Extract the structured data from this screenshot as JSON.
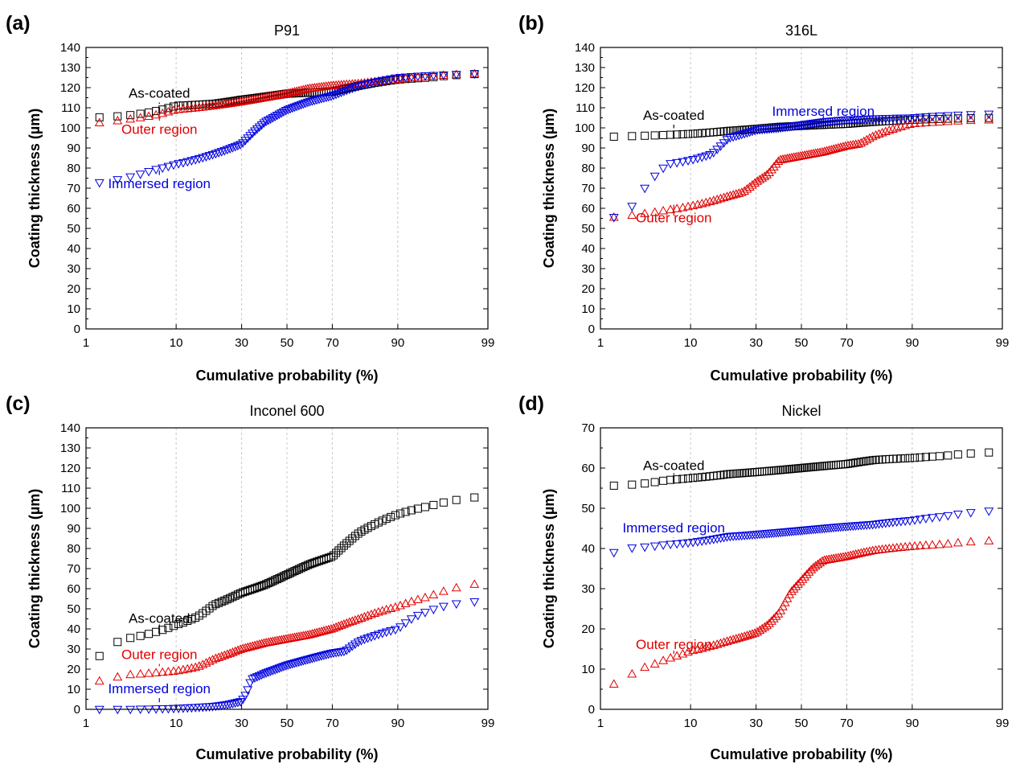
{
  "chart_data": [
    {
      "type": "scatter",
      "panel_label": "(a)",
      "title": "P91",
      "xlabel": "Cumulative probability (%)",
      "ylabel": "Coating thickness (µm)",
      "x_scale": "probability",
      "xlim": [
        1,
        99
      ],
      "xticks": [
        1,
        10,
        30,
        50,
        70,
        90,
        99
      ],
      "ylim": [
        0,
        140
      ],
      "yticks": [
        0,
        10,
        20,
        30,
        40,
        50,
        60,
        70,
        80,
        90,
        100,
        110,
        120,
        130,
        140
      ],
      "grid": "vertical dashed",
      "series": [
        {
          "name": "As-coated",
          "marker": "square",
          "color": "#000000",
          "curve": [
            [
              1,
              105
            ],
            [
              3,
              106
            ],
            [
              6,
              108
            ],
            [
              10,
              111
            ],
            [
              20,
              112
            ],
            [
              30,
              114
            ],
            [
              40,
              115.5
            ],
            [
              50,
              117
            ],
            [
              60,
              117.5
            ],
            [
              70,
              118
            ],
            [
              80,
              121
            ],
            [
              90,
              124
            ],
            [
              95,
              125
            ],
            [
              99,
              127
            ]
          ]
        },
        {
          "name": "Outer region",
          "marker": "triangle-up",
          "color": "#e00000",
          "curve": [
            [
              1,
              102
            ],
            [
              3,
              104
            ],
            [
              6,
              106
            ],
            [
              10,
              109
            ],
            [
              20,
              111
            ],
            [
              30,
              113
            ],
            [
              40,
              115
            ],
            [
              50,
              117
            ],
            [
              60,
              119.5
            ],
            [
              70,
              121
            ],
            [
              80,
              122
            ],
            [
              90,
              124
            ],
            [
              95,
              125.5
            ],
            [
              99,
              127
            ]
          ]
        },
        {
          "name": "Immersed region",
          "marker": "triangle-down",
          "color": "#0000e0",
          "curve": [
            [
              1,
              72
            ],
            [
              3,
              75
            ],
            [
              6,
              79
            ],
            [
              10,
              82
            ],
            [
              20,
              87
            ],
            [
              30,
              92
            ],
            [
              35,
              98
            ],
            [
              40,
              103
            ],
            [
              50,
              109
            ],
            [
              60,
              113
            ],
            [
              70,
              116
            ],
            [
              80,
              121
            ],
            [
              90,
              125
            ],
            [
              95,
              126
            ],
            [
              99,
              127
            ]
          ]
        }
      ],
      "annotations": [
        {
          "text": "As-coated",
          "color": "#000000",
          "x": 7,
          "y": 115
        },
        {
          "text": "Outer region",
          "color": "#e00000",
          "x": 7,
          "y": 97
        },
        {
          "text": "Immersed region",
          "color": "#0000e0",
          "x": 7,
          "y": 70
        }
      ]
    },
    {
      "type": "scatter",
      "panel_label": "(b)",
      "title": "316L",
      "xlabel": "Cumulative probability (%)",
      "ylabel": "Coating thickness (µm)",
      "x_scale": "probability",
      "xlim": [
        1,
        99
      ],
      "xticks": [
        1,
        10,
        30,
        50,
        70,
        90,
        99
      ],
      "ylim": [
        0,
        140
      ],
      "yticks": [
        0,
        10,
        20,
        30,
        40,
        50,
        60,
        70,
        80,
        90,
        100,
        110,
        120,
        130,
        140
      ],
      "grid": "vertical dashed",
      "series": [
        {
          "name": "As-coated",
          "marker": "square",
          "color": "#000000",
          "curve": [
            [
              1,
              95.5
            ],
            [
              3,
              96
            ],
            [
              6,
              96.5
            ],
            [
              10,
              97
            ],
            [
              20,
              98.5
            ],
            [
              30,
              99.5
            ],
            [
              40,
              100.5
            ],
            [
              50,
              101
            ],
            [
              60,
              101.5
            ],
            [
              70,
              102
            ],
            [
              80,
              103
            ],
            [
              90,
              104
            ],
            [
              95,
              104.5
            ],
            [
              99,
              105
            ]
          ]
        },
        {
          "name": "Outer region",
          "marker": "triangle-up",
          "color": "#e00000",
          "curve": [
            [
              1,
              55
            ],
            [
              3,
              57
            ],
            [
              6,
              59
            ],
            [
              10,
              61
            ],
            [
              20,
              66
            ],
            [
              25,
              68
            ],
            [
              30,
              73
            ],
            [
              35,
              77
            ],
            [
              40,
              84
            ],
            [
              50,
              86
            ],
            [
              60,
              88
            ],
            [
              70,
              91
            ],
            [
              75,
              92
            ],
            [
              80,
              96
            ],
            [
              90,
              102
            ],
            [
              95,
              103
            ],
            [
              99,
              104
            ]
          ]
        },
        {
          "name": "Immersed region",
          "marker": "triangle-down",
          "color": "#0000e0",
          "curve": [
            [
              1,
              55
            ],
            [
              2,
              56
            ],
            [
              3,
              66
            ],
            [
              4,
              74
            ],
            [
              6,
              82
            ],
            [
              10,
              84
            ],
            [
              15,
              87
            ],
            [
              20,
              95
            ],
            [
              30,
              99
            ],
            [
              40,
              100
            ],
            [
              50,
              101.5
            ],
            [
              60,
              103
            ],
            [
              70,
              104
            ],
            [
              80,
              104.5
            ],
            [
              90,
              105
            ],
            [
              95,
              106
            ],
            [
              99,
              107
            ]
          ]
        }
      ],
      "annotations": [
        {
          "text": "As-coated",
          "color": "#000000",
          "x": 7,
          "y": 104
        },
        {
          "text": "Immersed region",
          "color": "#0000e0",
          "x": 60,
          "y": 106
        },
        {
          "text": "Outer region",
          "color": "#e00000",
          "x": 7,
          "y": 53
        }
      ]
    },
    {
      "type": "scatter",
      "panel_label": "(c)",
      "title": "Inconel 600",
      "xlabel": "Cumulative probability (%)",
      "ylabel": "Coating thickness (µm)",
      "x_scale": "probability",
      "xlim": [
        1,
        99
      ],
      "xticks": [
        1,
        10,
        30,
        50,
        70,
        90,
        99
      ],
      "ylim": [
        0,
        140
      ],
      "yticks": [
        0,
        10,
        20,
        30,
        40,
        50,
        60,
        70,
        80,
        90,
        100,
        110,
        120,
        130,
        140
      ],
      "grid": "vertical dashed",
      "series": [
        {
          "name": "As-coated",
          "marker": "square",
          "color": "#000000",
          "curve": [
            [
              1,
              21
            ],
            [
              2,
              32
            ],
            [
              3,
              35
            ],
            [
              6,
              38
            ],
            [
              10,
              42
            ],
            [
              15,
              46
            ],
            [
              20,
              52
            ],
            [
              30,
              58
            ],
            [
              40,
              62
            ],
            [
              50,
              67
            ],
            [
              60,
              72
            ],
            [
              70,
              76
            ],
            [
              75,
              82
            ],
            [
              80,
              88
            ],
            [
              90,
              97
            ],
            [
              95,
              101
            ],
            [
              99,
              106
            ]
          ]
        },
        {
          "name": "Outer region",
          "marker": "triangle-up",
          "color": "#e00000",
          "curve": [
            [
              1,
              13
            ],
            [
              2,
              15
            ],
            [
              3,
              17
            ],
            [
              6,
              18
            ],
            [
              10,
              19
            ],
            [
              15,
              21
            ],
            [
              20,
              25
            ],
            [
              30,
              30
            ],
            [
              40,
              33
            ],
            [
              50,
              35
            ],
            [
              60,
              37
            ],
            [
              70,
              40
            ],
            [
              80,
              45
            ],
            [
              90,
              51
            ],
            [
              95,
              56
            ],
            [
              99,
              63
            ]
          ]
        },
        {
          "name": "Immersed region",
          "marker": "triangle-down",
          "color": "#0000e0",
          "curve": [
            [
              1,
              0
            ],
            [
              3,
              0
            ],
            [
              10,
              0.5
            ],
            [
              20,
              1.5
            ],
            [
              25,
              2.5
            ],
            [
              30,
              4
            ],
            [
              32,
              8
            ],
            [
              34,
              15
            ],
            [
              40,
              18
            ],
            [
              50,
              22
            ],
            [
              60,
              25
            ],
            [
              70,
              28
            ],
            [
              75,
              29
            ],
            [
              80,
              34
            ],
            [
              90,
              40
            ],
            [
              93,
              46
            ],
            [
              97,
              52
            ],
            [
              99,
              54
            ]
          ]
        }
      ],
      "annotations": [
        {
          "text": "As-coated",
          "color": "#000000",
          "x": 7,
          "y": 43
        },
        {
          "text": "Outer region",
          "color": "#e00000",
          "x": 7,
          "y": 25
        },
        {
          "text": "Immersed region",
          "color": "#0000e0",
          "x": 7,
          "y": 8
        }
      ]
    },
    {
      "type": "scatter",
      "panel_label": "(d)",
      "title": "Nickel",
      "xlabel": "Cumulative probability (%)",
      "ylabel": "Coating thickness (µm)",
      "x_scale": "probability",
      "xlim": [
        1,
        99
      ],
      "xticks": [
        1,
        10,
        30,
        50,
        70,
        90,
        99
      ],
      "ylim": [
        0,
        70
      ],
      "yticks": [
        0,
        10,
        20,
        30,
        40,
        50,
        60,
        70
      ],
      "grid": "vertical dashed",
      "series": [
        {
          "name": "As-coated",
          "marker": "square",
          "color": "#000000",
          "curve": [
            [
              1,
              55.5
            ],
            [
              3,
              56
            ],
            [
              6,
              57
            ],
            [
              10,
              57.5
            ],
            [
              20,
              58.5
            ],
            [
              30,
              59
            ],
            [
              40,
              59.5
            ],
            [
              50,
              60
            ],
            [
              60,
              60.5
            ],
            [
              70,
              61
            ],
            [
              80,
              62
            ],
            [
              90,
              62.5
            ],
            [
              95,
              63
            ],
            [
              99,
              64
            ]
          ]
        },
        {
          "name": "Immersed region",
          "marker": "triangle-down",
          "color": "#0000e0",
          "curve": [
            [
              1,
              38
            ],
            [
              2,
              40
            ],
            [
              6,
              41
            ],
            [
              10,
              41.5
            ],
            [
              20,
              43
            ],
            [
              30,
              43.5
            ],
            [
              40,
              44
            ],
            [
              50,
              44.5
            ],
            [
              60,
              45
            ],
            [
              70,
              45.5
            ],
            [
              80,
              46
            ],
            [
              90,
              47
            ],
            [
              95,
              48
            ],
            [
              99,
              49.5
            ]
          ]
        },
        {
          "name": "Outer region",
          "marker": "triangle-up",
          "color": "#e00000",
          "curve": [
            [
              1,
              5
            ],
            [
              2,
              7.5
            ],
            [
              3,
              10
            ],
            [
              6,
              12.5
            ],
            [
              10,
              14.5
            ],
            [
              20,
              17
            ],
            [
              30,
              19
            ],
            [
              35,
              21
            ],
            [
              40,
              24
            ],
            [
              45,
              29
            ],
            [
              50,
              32
            ],
            [
              55,
              35
            ],
            [
              60,
              37
            ],
            [
              70,
              38
            ],
            [
              80,
              39.5
            ],
            [
              90,
              40.5
            ],
            [
              95,
              41
            ],
            [
              99,
              42
            ]
          ]
        }
      ],
      "annotations": [
        {
          "text": "As-coated",
          "color": "#000000",
          "x": 7,
          "y": 59.5
        },
        {
          "text": "Immersed region",
          "color": "#0000e0",
          "x": 7,
          "y": 44
        },
        {
          "text": "Outer region",
          "color": "#e00000",
          "x": 7,
          "y": 15
        }
      ]
    }
  ]
}
